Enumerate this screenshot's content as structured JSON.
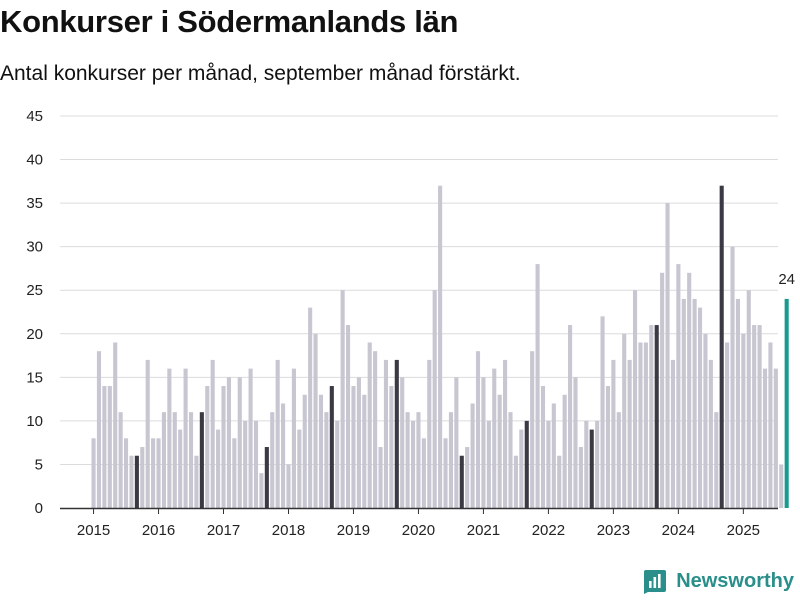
{
  "header": {
    "title": "Konkurser i Södermanlands län",
    "subtitle": "Antal konkurser per månad, september månad förstärkt."
  },
  "brand": {
    "name": "Newsworthy",
    "icon": "newsworthy-logo-icon"
  },
  "colors": {
    "normal": "#c7c6d1",
    "highlight": "#3b3a44",
    "latest": "#1a9a8f",
    "grid": "#dcdcdc",
    "axis": "#333333"
  },
  "chart_data": {
    "type": "bar",
    "title": "Konkurser i Södermanlands län",
    "subtitle": "Antal konkurser per månad, september månad förstärkt.",
    "xlabel": "",
    "ylabel": "",
    "ylim": [
      0,
      45
    ],
    "yticks": [
      0,
      5,
      10,
      15,
      20,
      25,
      30,
      35,
      40,
      45
    ],
    "grid": true,
    "start": "2015-01",
    "year_labels": [
      "2015",
      "2016",
      "2017",
      "2018",
      "2019",
      "2020",
      "2021",
      "2022",
      "2023",
      "2024",
      "2025"
    ],
    "highlight_month": "september",
    "annotation": {
      "month": "2025-09",
      "label": "24"
    },
    "values": [
      8,
      18,
      14,
      14,
      19,
      11,
      8,
      6,
      6,
      7,
      17,
      8,
      8,
      11,
      16,
      11,
      9,
      16,
      11,
      6,
      11,
      14,
      17,
      9,
      14,
      15,
      8,
      15,
      10,
      16,
      10,
      4,
      7,
      11,
      17,
      12,
      5,
      16,
      9,
      13,
      23,
      20,
      13,
      11,
      14,
      10,
      25,
      21,
      14,
      15,
      13,
      19,
      18,
      7,
      17,
      14,
      17,
      15,
      11,
      10,
      11,
      8,
      17,
      25,
      37,
      8,
      11,
      15,
      6,
      7,
      12,
      18,
      15,
      10,
      16,
      13,
      17,
      11,
      6,
      9,
      10,
      18,
      28,
      14,
      10,
      12,
      6,
      13,
      21,
      15,
      7,
      10,
      9,
      10,
      22,
      14,
      17,
      11,
      20,
      17,
      25,
      19,
      19,
      21,
      21,
      27,
      35,
      17,
      28,
      24,
      27,
      24,
      23,
      20,
      17,
      11,
      37,
      19,
      30,
      24,
      20,
      25,
      21,
      21,
      16,
      19,
      16,
      5,
      24
    ]
  }
}
